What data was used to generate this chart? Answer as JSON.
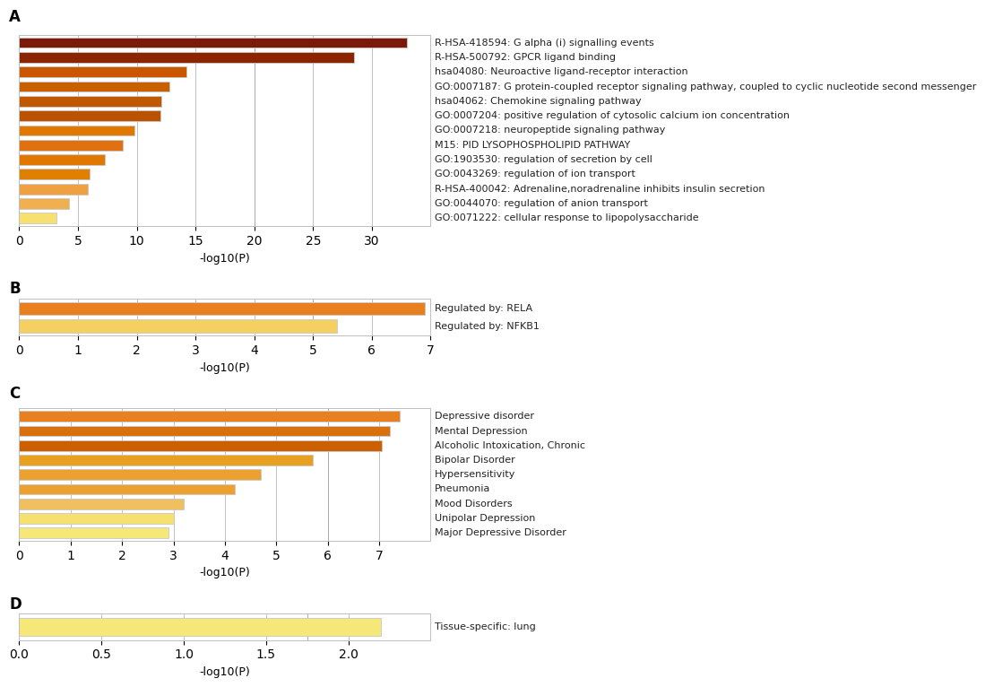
{
  "panel_A": {
    "labels": [
      "R-HSA-418594: G alpha (i) signalling events",
      "R-HSA-500792: GPCR ligand binding",
      "hsa04080: Neuroactive ligand-receptor interaction",
      "GO:0007187: G protein-coupled receptor signaling pathway, coupled to cyclic nucleotide second messenger",
      "hsa04062: Chemokine signaling pathway",
      "GO:0007204: positive regulation of cytosolic calcium ion concentration",
      "GO:0007218: neuropeptide signaling pathway",
      "M15: PID LYSOPHOSPHOLIPID PATHWAY",
      "GO:1903530: regulation of secretion by cell",
      "GO:0043269: regulation of ion transport",
      "R-HSA-400042: Adrenaline,noradrenaline inhibits insulin secretion",
      "GO:0044070: regulation of anion transport",
      "GO:0071222: cellular response to lipopolysaccharide"
    ],
    "values": [
      33.0,
      28.5,
      14.2,
      12.8,
      12.1,
      12.0,
      9.8,
      8.8,
      7.3,
      6.0,
      5.8,
      4.2,
      3.2
    ],
    "colors": [
      "#7B1A0A",
      "#8B2500",
      "#CC5500",
      "#C86000",
      "#C05800",
      "#BB5200",
      "#E07800",
      "#E07010",
      "#E07800",
      "#E08000",
      "#EFA040",
      "#F0B050",
      "#F5E070"
    ],
    "xlabel": "-log10(P)",
    "xlim": [
      0,
      35
    ],
    "xticks": [
      0,
      5,
      10,
      15,
      20,
      25,
      30
    ],
    "vlines": [
      20
    ],
    "title": "A"
  },
  "panel_B": {
    "labels": [
      "Regulated by: RELA",
      "Regulated by: NFKB1"
    ],
    "values": [
      6.9,
      5.4
    ],
    "colors": [
      "#E88020",
      "#F5D060"
    ],
    "xlabel": "-log10(P)",
    "xlim": [
      0,
      7
    ],
    "xticks": [
      0,
      1,
      2,
      3,
      4,
      5,
      6,
      7
    ],
    "vlines": [
      5
    ],
    "title": "B"
  },
  "panel_C": {
    "labels": [
      "Depressive disorder",
      "Mental Depression",
      "Alcoholic Intoxication, Chronic",
      "Bipolar Disorder",
      "Hypersensitivity",
      "Pneumonia",
      "Mood Disorders",
      "Unipolar Depression",
      "Major Depressive Disorder"
    ],
    "values": [
      7.4,
      7.2,
      7.05,
      5.7,
      4.7,
      4.2,
      3.2,
      3.0,
      2.9
    ],
    "colors": [
      "#E88020",
      "#D97010",
      "#CC6000",
      "#E8A020",
      "#ECA030",
      "#ECA030",
      "#F0C060",
      "#F5E070",
      "#F5E878"
    ],
    "xlabel": "-log10(P)",
    "xlim": [
      0,
      8
    ],
    "xticks": [
      0,
      1,
      2,
      3,
      4,
      5,
      6,
      7
    ],
    "vlines": [
      6
    ],
    "title": "C"
  },
  "panel_D": {
    "labels": [
      "Tissue-specific: lung"
    ],
    "values": [
      2.2
    ],
    "colors": [
      "#F5E878"
    ],
    "xlabel": "-log10(P)",
    "xlim": [
      0.0,
      2.5
    ],
    "xticks": [
      0.0,
      0.5,
      1.0,
      1.5,
      2.0
    ],
    "vlines": [
      1.75
    ],
    "title": "D"
  },
  "bg_color": "#FFFFFF",
  "grid_color": "#AAAAAA",
  "label_fontsize": 8.0,
  "axis_label_fontsize": 9,
  "title_fontsize": 12,
  "bar_height": 0.72
}
